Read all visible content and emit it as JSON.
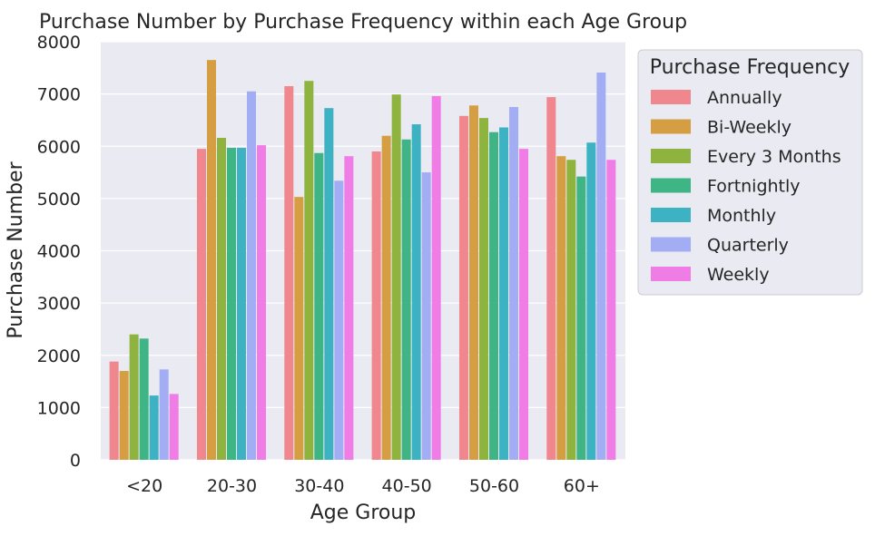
{
  "chart_data": {
    "type": "bar",
    "title": "Purchase Number by Purchase Frequency within each Age Group",
    "xlabel": "Age Group",
    "ylabel": "Purchase Number",
    "ylim": [
      0,
      8000
    ],
    "yticks": [
      "0",
      "1000",
      "2000",
      "3000",
      "4000",
      "5000",
      "6000",
      "7000",
      "8000"
    ],
    "grid": true,
    "legend_title": "Purchase Frequency",
    "legend_position": "outside-top-right",
    "categories": [
      "<20",
      "20-30",
      "30-40",
      "40-50",
      "50-60",
      "60+"
    ],
    "series": [
      {
        "name": "Annually",
        "color": "#f0868e",
        "values": [
          1880,
          5950,
          7150,
          5900,
          6580,
          6940
        ]
      },
      {
        "name": "Bi-Weekly",
        "color": "#d59e42",
        "values": [
          1700,
          7650,
          5030,
          6200,
          6780,
          5810
        ]
      },
      {
        "name": "Every 3 Months",
        "color": "#8eb33e",
        "values": [
          2400,
          6160,
          7250,
          6990,
          6540,
          5740
        ]
      },
      {
        "name": "Fortnightly",
        "color": "#3fb484",
        "values": [
          2320,
          5970,
          5870,
          6130,
          6270,
          5420
        ]
      },
      {
        "name": "Monthly",
        "color": "#3db2c2",
        "values": [
          1230,
          5970,
          6730,
          6420,
          6360,
          6070
        ]
      },
      {
        "name": "Quarterly",
        "color": "#a3adf4",
        "values": [
          1730,
          7050,
          5340,
          5500,
          6750,
          7410
        ]
      },
      {
        "name": "Weekly",
        "color": "#f07de6",
        "values": [
          1260,
          6020,
          5810,
          6960,
          5950,
          5740
        ]
      }
    ]
  }
}
